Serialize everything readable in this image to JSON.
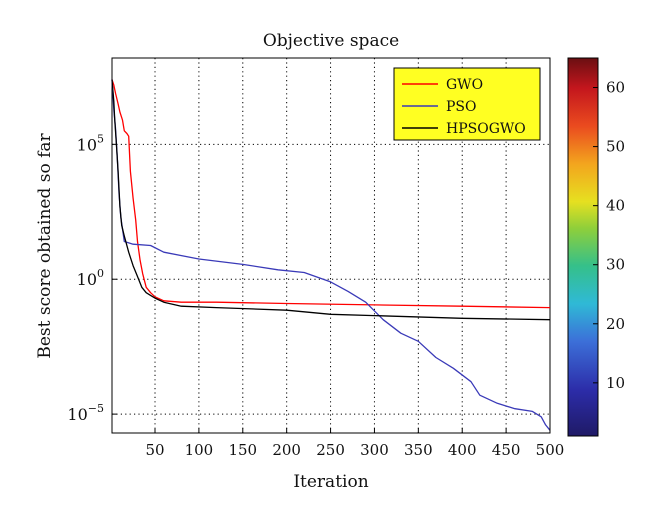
{
  "chart_data": {
    "type": "line",
    "title": "Objective space",
    "xlabel": "Iteration",
    "ylabel": "Best score obtained so far",
    "yscale": "log",
    "xlim": [
      1,
      500
    ],
    "ylim_exponent": [
      -5.7,
      8.2
    ],
    "grid": true,
    "grid_style": "dotted",
    "legend_position": "top-right",
    "legend_background": "#ffff22",
    "x_ticks": [
      50,
      100,
      150,
      200,
      250,
      300,
      350,
      400,
      450,
      500
    ],
    "y_ticks": [
      {
        "base": "10",
        "exp": "5",
        "value": 5
      },
      {
        "base": "10",
        "exp": "0",
        "value": 0
      },
      {
        "base": "10",
        "exp": "−5",
        "value": -5
      }
    ],
    "series": [
      {
        "name": "GWO",
        "color": "#ff0000",
        "points_log10": [
          [
            1,
            7.4
          ],
          [
            3,
            7.2
          ],
          [
            5,
            6.9
          ],
          [
            8,
            6.5
          ],
          [
            10,
            6.2
          ],
          [
            13,
            5.9
          ],
          [
            15,
            5.5
          ],
          [
            18,
            5.4
          ],
          [
            20,
            5.3
          ],
          [
            22,
            4.0
          ],
          [
            25,
            3.0
          ],
          [
            28,
            2.2
          ],
          [
            30,
            1.4
          ],
          [
            33,
            0.7
          ],
          [
            36,
            0.2
          ],
          [
            40,
            -0.3
          ],
          [
            45,
            -0.5
          ],
          [
            50,
            -0.65
          ],
          [
            60,
            -0.8
          ],
          [
            80,
            -0.85
          ],
          [
            120,
            -0.85
          ],
          [
            200,
            -0.9
          ],
          [
            300,
            -0.95
          ],
          [
            400,
            -1.0
          ],
          [
            500,
            -1.05
          ]
        ]
      },
      {
        "name": "PSO",
        "color": "#3a3ab8",
        "points_log10": [
          [
            1,
            7.4
          ],
          [
            2,
            6.9
          ],
          [
            3,
            6.3
          ],
          [
            5,
            5.6
          ],
          [
            7,
            4.5
          ],
          [
            9,
            3.2
          ],
          [
            11,
            2.3
          ],
          [
            15,
            1.4
          ],
          [
            25,
            1.3
          ],
          [
            45,
            1.25
          ],
          [
            60,
            1.0
          ],
          [
            100,
            0.75
          ],
          [
            150,
            0.55
          ],
          [
            190,
            0.35
          ],
          [
            220,
            0.25
          ],
          [
            250,
            -0.1
          ],
          [
            270,
            -0.45
          ],
          [
            290,
            -0.85
          ],
          [
            310,
            -1.5
          ],
          [
            330,
            -2.0
          ],
          [
            350,
            -2.3
          ],
          [
            370,
            -2.9
          ],
          [
            390,
            -3.3
          ],
          [
            410,
            -3.8
          ],
          [
            420,
            -4.3
          ],
          [
            440,
            -4.6
          ],
          [
            460,
            -4.8
          ],
          [
            480,
            -4.9
          ],
          [
            490,
            -5.1
          ],
          [
            495,
            -5.4
          ],
          [
            500,
            -5.6
          ]
        ]
      },
      {
        "name": "HPSOGWO",
        "color": "#000000",
        "points_log10": [
          [
            1,
            7.4
          ],
          [
            2,
            7.0
          ],
          [
            3,
            6.6
          ],
          [
            4,
            6.0
          ],
          [
            6,
            5.0
          ],
          [
            8,
            4.0
          ],
          [
            10,
            2.7
          ],
          [
            12,
            2.0
          ],
          [
            15,
            1.6
          ],
          [
            20,
            1.0
          ],
          [
            25,
            0.5
          ],
          [
            30,
            0.1
          ],
          [
            35,
            -0.3
          ],
          [
            40,
            -0.5
          ],
          [
            45,
            -0.6
          ],
          [
            50,
            -0.7
          ],
          [
            60,
            -0.85
          ],
          [
            80,
            -1.0
          ],
          [
            120,
            -1.05
          ],
          [
            200,
            -1.15
          ],
          [
            250,
            -1.3
          ],
          [
            300,
            -1.35
          ],
          [
            400,
            -1.45
          ],
          [
            500,
            -1.5
          ]
        ]
      }
    ],
    "colorbar": {
      "min": 1,
      "max": 65,
      "ticks": [
        "10",
        "20",
        "30",
        "40",
        "50",
        "60"
      ]
    }
  }
}
